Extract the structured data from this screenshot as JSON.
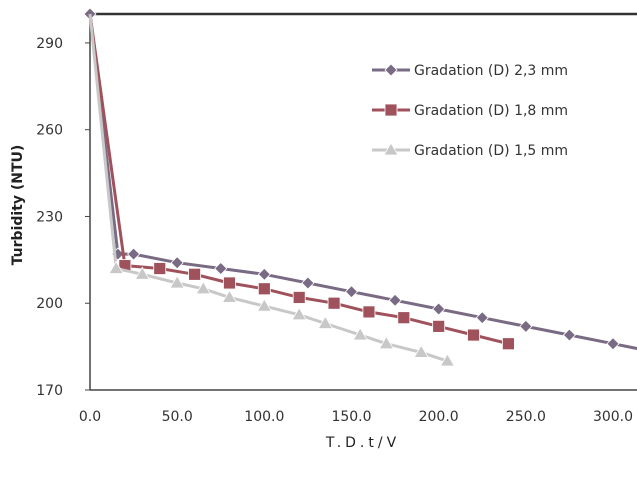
{
  "chart_data": {
    "type": "line",
    "title": "",
    "xlabel": "T.D.t/V",
    "ylabel": "Turbidity  (NTU)",
    "xlim": [
      0,
      310
    ],
    "ylim": [
      170,
      300
    ],
    "x_ticks": [
      "0.0",
      "50.0",
      "100.0",
      "150.0",
      "200.0",
      "250.0",
      "300.0"
    ],
    "x_tick_values": [
      0,
      50,
      100,
      150,
      200,
      250,
      300
    ],
    "y_ticks": [
      "170",
      "200",
      "230",
      "260",
      "290"
    ],
    "y_tick_values": [
      170,
      200,
      230,
      260,
      290
    ],
    "grid": false,
    "legend_position": "top-right",
    "series": [
      {
        "name": "Gradation (D) 2,3 mm",
        "color": "#7a6b84",
        "marker": "diamond",
        "x": [
          0,
          16,
          25,
          50,
          75,
          100,
          125,
          150,
          175,
          200,
          225,
          250,
          275,
          300,
          325
        ],
        "y": [
          300,
          217,
          217,
          214,
          212,
          210,
          207,
          204,
          201,
          198,
          195,
          192,
          189,
          186,
          183
        ]
      },
      {
        "name": "Gradation (D) 1,8 mm",
        "color": "#a0525c",
        "marker": "square",
        "x": [
          0,
          20,
          40,
          60,
          80,
          100,
          120,
          140,
          160,
          180,
          200,
          220,
          240
        ],
        "y": [
          300,
          213,
          212,
          210,
          207,
          205,
          202,
          200,
          197,
          195,
          192,
          189,
          186
        ]
      },
      {
        "name": "Gradation (D) 1,5 mm",
        "color": "#c8c8c8",
        "marker": "triangle",
        "x": [
          0,
          15,
          30,
          50,
          65,
          80,
          100,
          120,
          135,
          155,
          170,
          190,
          205
        ],
        "y": [
          300,
          212,
          210,
          207,
          205,
          202,
          199,
          196,
          193,
          189,
          186,
          183,
          180
        ]
      }
    ]
  }
}
